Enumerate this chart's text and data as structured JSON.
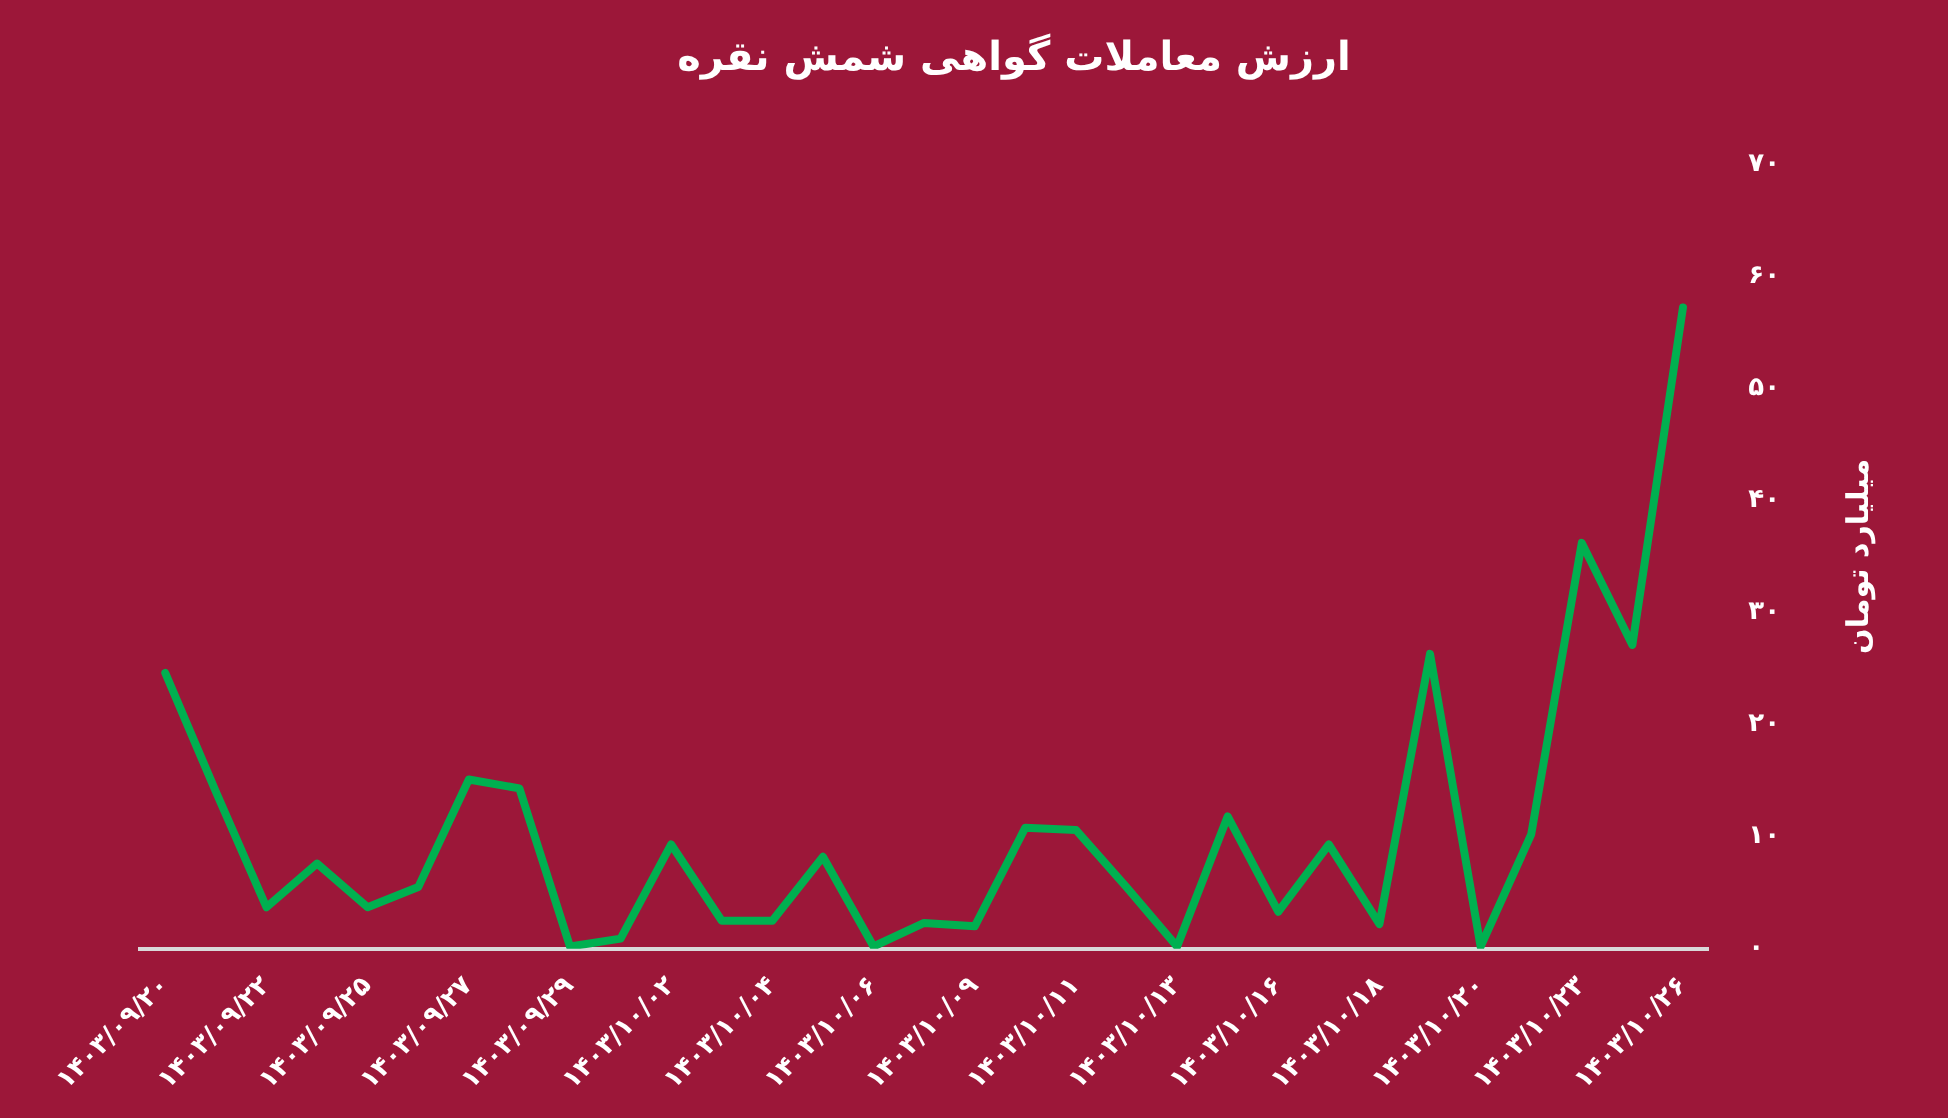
{
  "chart_data": {
    "type": "line",
    "title": "ارزش معاملات گواهی شمش نقره",
    "ylabel": "میلیارد تومان",
    "categories": [
      "۱۴۰۳/۰۹/۲۰",
      null,
      "۱۴۰۳/۰۹/۲۲",
      null,
      "۱۴۰۳/۰۹/۲۵",
      null,
      "۱۴۰۳/۰۹/۲۷",
      null,
      "۱۴۰۳/۰۹/۲۹",
      null,
      "۱۴۰۳/۱۰/۰۲",
      null,
      "۱۴۰۳/۱۰/۰۴",
      null,
      "۱۴۰۳/۱۰/۰۶",
      null,
      "۱۴۰۳/۱۰/۰۹",
      null,
      "۱۴۰۳/۱۰/۱۱",
      null,
      "۱۴۰۳/۱۰/۱۳",
      null,
      "۱۴۰۳/۱۰/۱۶",
      null,
      "۱۴۰۳/۱۰/۱۸",
      null,
      "۱۴۰۳/۱۰/۲۰",
      null,
      "۱۴۰۳/۱۰/۲۳",
      null,
      "۱۴۰۳/۱۰/۲۶"
    ],
    "series": [
      {
        "color": "#00b050",
        "values": [
          24.6,
          14,
          3.7,
          7.6,
          3.7,
          5.5,
          15.1,
          14.3,
          0.2,
          0.9,
          9.3,
          2.5,
          2.5,
          8.2,
          0.2,
          2.3,
          2,
          10.8,
          10.6,
          5.5,
          0.2,
          11.8,
          3.3,
          9.3,
          2.2,
          26.3,
          0.2,
          10.2,
          36.2,
          27.1,
          57.2
        ]
      }
    ],
    "ylim": [
      0,
      70
    ],
    "yticks": [
      {
        "value": 0,
        "label": "۰"
      },
      {
        "value": 10,
        "label": "۱۰"
      },
      {
        "value": 20,
        "label": "۲۰"
      },
      {
        "value": 30,
        "label": "۳۰"
      },
      {
        "value": 40,
        "label": "۴۰"
      },
      {
        "value": 50,
        "label": "۵۰"
      },
      {
        "value": 60,
        "label": "۶۰"
      },
      {
        "value": 70,
        "label": "۷۰"
      }
    ],
    "grid": false,
    "legend": false,
    "marker": "none",
    "line_style": "solid"
  }
}
